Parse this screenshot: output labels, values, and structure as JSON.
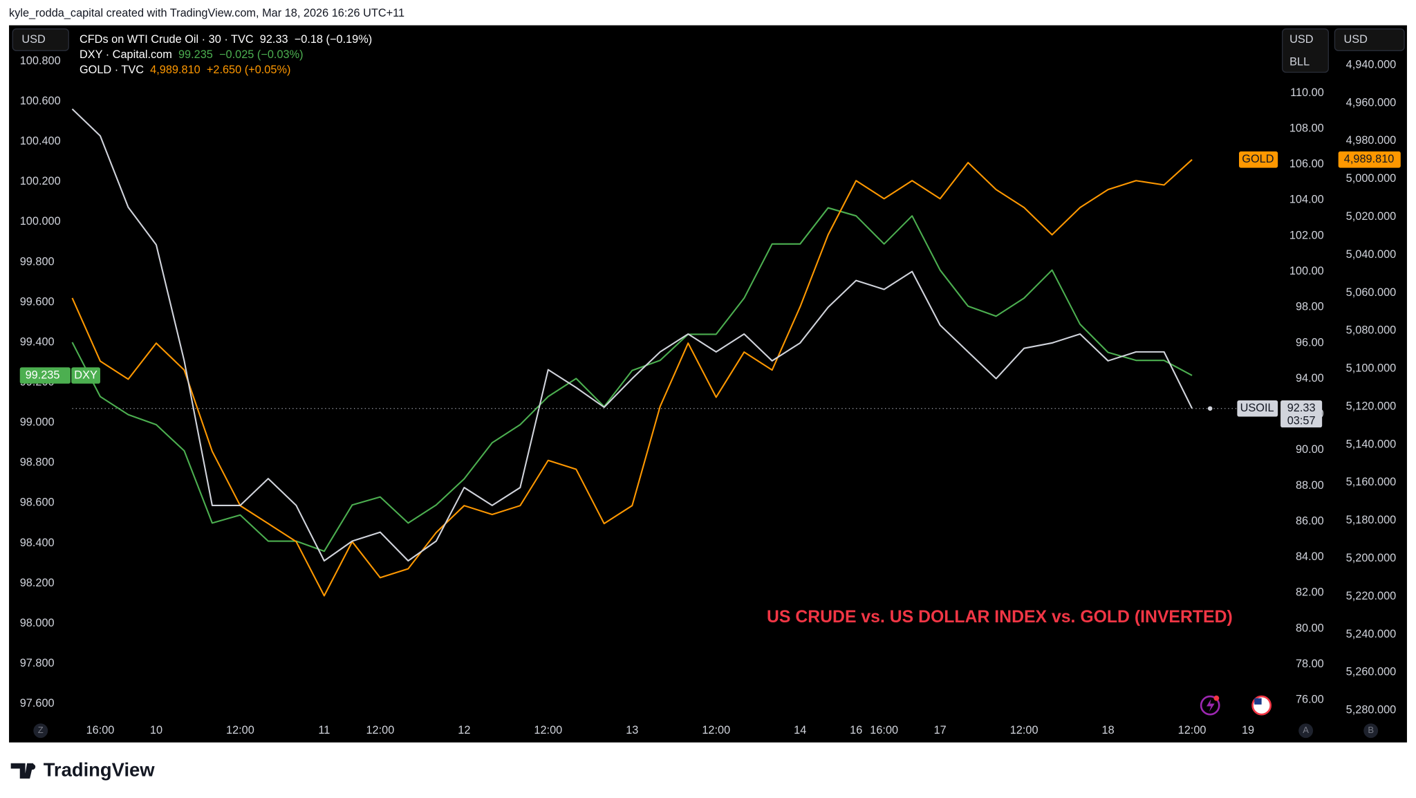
{
  "attribution": "kyle_rodda_capital created with TradingView.com, Mar 18, 2026 16:26 UTC+11",
  "brand": "TradingView",
  "chart_data": {
    "type": "line",
    "annotation": "US CRUDE vs. US DOLLAR INDEX vs. GOLD (INVERTED)",
    "categories": [
      null,
      "16:00",
      null,
      "10",
      null,
      null,
      "12:00",
      null,
      null,
      "11",
      null,
      "12:00",
      null,
      null,
      "12",
      null,
      null,
      "12:00",
      null,
      null,
      "13",
      null,
      null,
      "12:00",
      null,
      null,
      "14",
      null,
      "16",
      "16:00",
      null,
      "17",
      null,
      null,
      "12:00",
      null,
      null,
      "18",
      null,
      null,
      "12:00",
      null,
      "19"
    ],
    "ylabel": "USD",
    "y2label": "USD",
    "y2unit": "BLL",
    "y3label": "USD",
    "ylim": [
      97.52,
      100.97
    ],
    "yticks": [
      {
        "value": 97.6,
        "label": "97.600"
      },
      {
        "value": 97.8,
        "label": "97.800"
      },
      {
        "value": 98.0,
        "label": "98.000"
      },
      {
        "value": 98.2,
        "label": "98.200"
      },
      {
        "value": 98.4,
        "label": "98.400"
      },
      {
        "value": 98.6,
        "label": "98.600"
      },
      {
        "value": 98.8,
        "label": "98.800"
      },
      {
        "value": 99.0,
        "label": "99.000"
      },
      {
        "value": 99.2,
        "label": "99.200"
      },
      {
        "value": 99.4,
        "label": "99.400"
      },
      {
        "value": 99.6,
        "label": "99.600"
      },
      {
        "value": 99.8,
        "label": "99.800"
      },
      {
        "value": 100.0,
        "label": "100.000"
      },
      {
        "value": 100.2,
        "label": "100.200"
      },
      {
        "value": 100.4,
        "label": "100.400"
      },
      {
        "value": 100.6,
        "label": "100.600"
      },
      {
        "value": 100.8,
        "label": "100.800"
      }
    ],
    "y2lim": [
      74.89,
      113.69
    ],
    "y2ticks": [
      {
        "value": 76,
        "label": "76.00"
      },
      {
        "value": 78,
        "label": "78.00"
      },
      {
        "value": 80,
        "label": "80.00"
      },
      {
        "value": 82,
        "label": "82.00"
      },
      {
        "value": 84,
        "label": "84.00"
      },
      {
        "value": 86,
        "label": "86.00"
      },
      {
        "value": 88,
        "label": "88.00"
      },
      {
        "value": 90,
        "label": "90.00"
      },
      {
        "value": 92,
        "label": "92.00"
      },
      {
        "value": 94,
        "label": "94.00"
      },
      {
        "value": 96,
        "label": "96.00"
      },
      {
        "value": 98,
        "label": "98.00"
      },
      {
        "value": 100,
        "label": "100.00"
      },
      {
        "value": 102,
        "label": "102.00"
      },
      {
        "value": 104,
        "label": "104.00"
      },
      {
        "value": 106,
        "label": "106.00"
      },
      {
        "value": 108,
        "label": "108.00"
      },
      {
        "value": 110,
        "label": "110.00"
      }
    ],
    "y3lim": [
      5285,
      4920
    ],
    "y3ticks": [
      {
        "value": 4940,
        "label": "4,940.000"
      },
      {
        "value": 4960,
        "label": "4,960.000"
      },
      {
        "value": 4980,
        "label": "4,980.000"
      },
      {
        "value": 5000,
        "label": "5,000.000"
      },
      {
        "value": 5020,
        "label": "5,020.000"
      },
      {
        "value": 5040,
        "label": "5,040.000"
      },
      {
        "value": 5060,
        "label": "5,060.000"
      },
      {
        "value": 5080,
        "label": "5,080.000"
      },
      {
        "value": 5100,
        "label": "5,100.000"
      },
      {
        "value": 5120,
        "label": "5,120.000"
      },
      {
        "value": 5140,
        "label": "5,140.000"
      },
      {
        "value": 5160,
        "label": "5,160.000"
      },
      {
        "value": 5180,
        "label": "5,180.000"
      },
      {
        "value": 5200,
        "label": "5,200.000"
      },
      {
        "value": 5220,
        "label": "5,220.000"
      },
      {
        "value": 5240,
        "label": "5,240.000"
      },
      {
        "value": 5260,
        "label": "5,260.000"
      },
      {
        "value": 5280,
        "label": "5,280.000"
      }
    ],
    "grid": false,
    "price_line": true,
    "series": [
      {
        "name": "USOIL",
        "legend": "CFDs on WTI Crude Oil · 30 · TVC",
        "change": "−0.18 (−0.19%)",
        "countdown": "03:57",
        "color": "#d1d4dc",
        "axis": "y2",
        "values": [
          109.1,
          107.6,
          103.6,
          101.5,
          95.0,
          86.9,
          86.9,
          88.4,
          86.9,
          83.8,
          84.9,
          85.4,
          83.8,
          84.9,
          87.9,
          86.9,
          87.9,
          94.5,
          93.5,
          92.4,
          94.0,
          95.5,
          96.5,
          95.5,
          96.5,
          95.0,
          96.0,
          98.0,
          99.5,
          99.0,
          100.0,
          97.0,
          95.5,
          94.0,
          95.7,
          96.0,
          96.5,
          95.0,
          95.5,
          95.5,
          92.33,
          null,
          null
        ]
      },
      {
        "name": "DXY",
        "legend": "DXY · Capital.com",
        "change": "−0.025 (−0.03%)",
        "color": "#4caf50",
        "axis": "y",
        "values": [
          99.4,
          99.13,
          99.04,
          98.99,
          98.86,
          98.5,
          98.54,
          98.41,
          98.41,
          98.36,
          98.59,
          98.63,
          98.5,
          98.59,
          98.72,
          98.9,
          98.99,
          99.13,
          99.22,
          99.08,
          99.26,
          99.31,
          99.44,
          99.44,
          99.62,
          99.89,
          99.89,
          100.07,
          100.03,
          99.89,
          100.03,
          99.76,
          99.58,
          99.53,
          99.62,
          99.76,
          99.49,
          99.35,
          99.31,
          99.31,
          99.235,
          null,
          null
        ]
      },
      {
        "name": "GOLD",
        "legend": "GOLD · TVC",
        "change": "+2.650 (+0.05%)",
        "color": "#ff9800",
        "axis": "y3",
        "values": [
          5062.7,
          5096.0,
          5105.5,
          5086.5,
          5100.7,
          5143.5,
          5172.1,
          5181.6,
          5191.1,
          5219.6,
          5191.1,
          5210.1,
          5205.4,
          5186.3,
          5172.1,
          5176.8,
          5172.1,
          5148.3,
          5153.0,
          5181.6,
          5172.1,
          5119.8,
          5086.5,
          5115.0,
          5091.2,
          5100.7,
          5067.4,
          5029.4,
          5000.9,
          5010.4,
          5000.9,
          5010.4,
          4991.4,
          5005.6,
          5015.1,
          5029.4,
          5015.1,
          5005.6,
          5000.9,
          5003.2,
          4989.81,
          null,
          null
        ],
        "value_labels": [
          null,
          null,
          null,
          null,
          null,
          null,
          null,
          null,
          null,
          null,
          null,
          null,
          null,
          null,
          null,
          null,
          null,
          null,
          null,
          null,
          null,
          null,
          null,
          null,
          null,
          null,
          null,
          null,
          null,
          null,
          null,
          null,
          null,
          null,
          null,
          null,
          null,
          null,
          null,
          null,
          "4,989.810",
          null,
          null
        ]
      }
    ]
  },
  "axis_buttons": [
    "Z",
    "A",
    "B"
  ]
}
